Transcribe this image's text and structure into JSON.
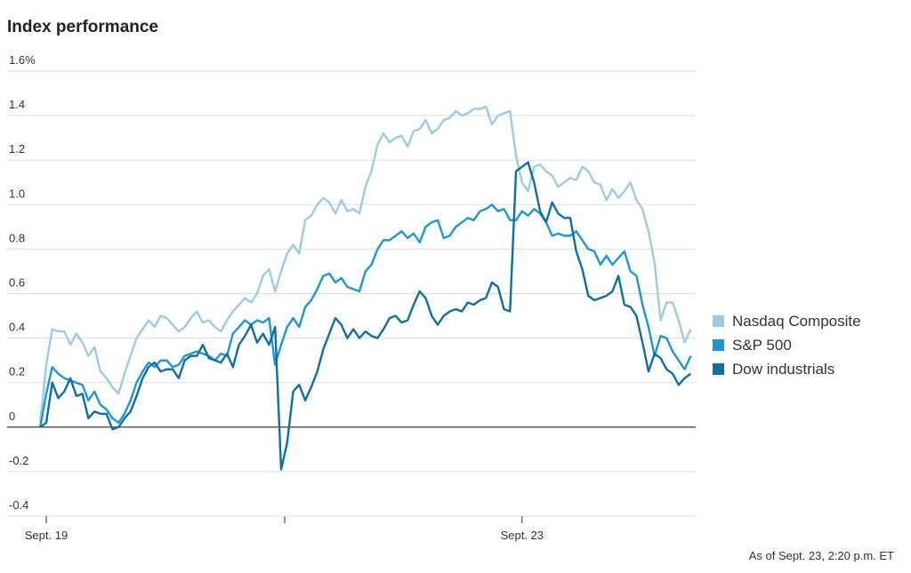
{
  "chart_data": {
    "type": "line",
    "title": "Index performance",
    "footnote": "As of Sept. 23, 2:20 p.m. ET",
    "categories": [
      null,
      "Sept. 19",
      null,
      null,
      null,
      null,
      null,
      null,
      null,
      null,
      null,
      null,
      null,
      null,
      null,
      null,
      null,
      null,
      null,
      null,
      null,
      null,
      null,
      null,
      null,
      null,
      null,
      null,
      null,
      null,
      null,
      null,
      null,
      null,
      null,
      null,
      null,
      null,
      null,
      null,
      null,
      null,
      null,
      null,
      null,
      null,
      null,
      null,
      null,
      null,
      null,
      null,
      null,
      null,
      null,
      null,
      null,
      null,
      null,
      null,
      null,
      null,
      null,
      null,
      null,
      null,
      null,
      null,
      null,
      null,
      null,
      null,
      null,
      null,
      null,
      null,
      null,
      null,
      null,
      null,
      "Sept. 23",
      null,
      null,
      null,
      null,
      null,
      null,
      null,
      null,
      null,
      null,
      null,
      null,
      null,
      null,
      null,
      null,
      null,
      null,
      null,
      null,
      null,
      null,
      null,
      null,
      null,
      null,
      null,
      null
    ],
    "series": [
      {
        "name": "Nasdaq Composite",
        "color": "#9ccbe8",
        "values": [
          0.02,
          0.28,
          0.44,
          0.43,
          0.43,
          0.37,
          0.42,
          0.38,
          0.32,
          0.36,
          0.25,
          0.22,
          0.18,
          0.15,
          0.24,
          0.32,
          0.4,
          0.44,
          0.48,
          0.45,
          0.5,
          0.49,
          0.46,
          0.43,
          0.45,
          0.49,
          0.52,
          0.47,
          0.48,
          0.45,
          0.43,
          0.48,
          0.52,
          0.55,
          0.58,
          0.56,
          0.6,
          0.68,
          0.71,
          0.61,
          0.7,
          0.78,
          0.82,
          0.78,
          0.93,
          0.95,
          1.0,
          1.03,
          1.01,
          0.96,
          1.02,
          0.97,
          0.98,
          0.96,
          1.08,
          1.15,
          1.27,
          1.32,
          1.28,
          1.3,
          1.31,
          1.26,
          1.33,
          1.34,
          1.38,
          1.32,
          1.34,
          1.38,
          1.39,
          1.42,
          1.4,
          1.41,
          1.43,
          1.43,
          1.44,
          1.36,
          1.4,
          1.41,
          1.42,
          1.22,
          1.1,
          1.06,
          1.17,
          1.18,
          1.15,
          1.13,
          1.08,
          1.1,
          1.12,
          1.11,
          1.17,
          1.15,
          1.1,
          1.09,
          1.02,
          1.07,
          1.03,
          1.06,
          1.1,
          1.02,
          0.98,
          0.88,
          0.74,
          0.48,
          0.56,
          0.56,
          0.48,
          0.38,
          0.44
        ]
      },
      {
        "name": "S&P 500",
        "color": "#1e96d6",
        "values": [
          0.0,
          0.15,
          0.27,
          0.24,
          0.22,
          0.21,
          0.2,
          0.19,
          0.12,
          0.16,
          0.1,
          0.08,
          0.04,
          0.02,
          0.06,
          0.12,
          0.2,
          0.25,
          0.29,
          0.27,
          0.3,
          0.3,
          0.27,
          0.28,
          0.32,
          0.33,
          0.34,
          0.33,
          0.32,
          0.3,
          0.33,
          0.32,
          0.42,
          0.45,
          0.48,
          0.46,
          0.48,
          0.47,
          0.49,
          0.28,
          0.37,
          0.45,
          0.49,
          0.45,
          0.54,
          0.57,
          0.62,
          0.68,
          0.69,
          0.65,
          0.67,
          0.63,
          0.62,
          0.61,
          0.7,
          0.73,
          0.8,
          0.84,
          0.84,
          0.86,
          0.88,
          0.85,
          0.87,
          0.83,
          0.9,
          0.92,
          0.93,
          0.85,
          0.86,
          0.9,
          0.92,
          0.94,
          0.93,
          0.97,
          0.98,
          1.0,
          0.97,
          0.98,
          0.93,
          0.93,
          0.97,
          0.95,
          0.98,
          0.96,
          0.92,
          0.86,
          0.87,
          0.86,
          0.86,
          0.88,
          0.84,
          0.8,
          0.79,
          0.73,
          0.77,
          0.73,
          0.76,
          0.79,
          0.7,
          0.68,
          0.55,
          0.45,
          0.32,
          0.41,
          0.4,
          0.34,
          0.3,
          0.26,
          0.32
        ]
      },
      {
        "name": "Dow industrials",
        "color": "#0f6ea6",
        "values": [
          0.0,
          0.02,
          0.2,
          0.13,
          0.16,
          0.22,
          0.14,
          0.15,
          0.04,
          0.07,
          0.06,
          0.06,
          -0.01,
          0.0,
          0.04,
          0.07,
          0.14,
          0.22,
          0.27,
          0.29,
          0.25,
          0.26,
          0.26,
          0.22,
          0.3,
          0.32,
          0.32,
          0.37,
          0.31,
          0.3,
          0.29,
          0.33,
          0.27,
          0.37,
          0.41,
          0.46,
          0.38,
          0.42,
          0.37,
          0.45,
          -0.19,
          -0.07,
          0.16,
          0.19,
          0.12,
          0.18,
          0.25,
          0.35,
          0.42,
          0.49,
          0.46,
          0.4,
          0.44,
          0.4,
          0.43,
          0.41,
          0.4,
          0.44,
          0.49,
          0.5,
          0.47,
          0.48,
          0.55,
          0.61,
          0.58,
          0.5,
          0.46,
          0.5,
          0.52,
          0.53,
          0.52,
          0.56,
          0.55,
          0.57,
          0.58,
          0.65,
          0.63,
          0.53,
          0.52,
          1.15,
          1.17,
          1.19,
          1.1,
          0.97,
          0.92,
          1.01,
          0.96,
          0.94,
          0.94,
          0.79,
          0.71,
          0.59,
          0.57,
          0.58,
          0.59,
          0.61,
          0.68,
          0.55,
          0.54,
          0.5,
          0.38,
          0.25,
          0.33,
          0.31,
          0.26,
          0.24,
          0.19,
          0.22,
          0.24
        ]
      }
    ],
    "ylim": [
      -0.4,
      1.6
    ],
    "yticks": [
      {
        "value": 1.6,
        "label": "1.6%"
      },
      1.4,
      1.2,
      {
        "value": 1,
        "label": "1.0"
      },
      0.8,
      0.6,
      0.4,
      0.2,
      0,
      -0.2,
      -0.4
    ],
    "grid": true,
    "legend": "right"
  }
}
